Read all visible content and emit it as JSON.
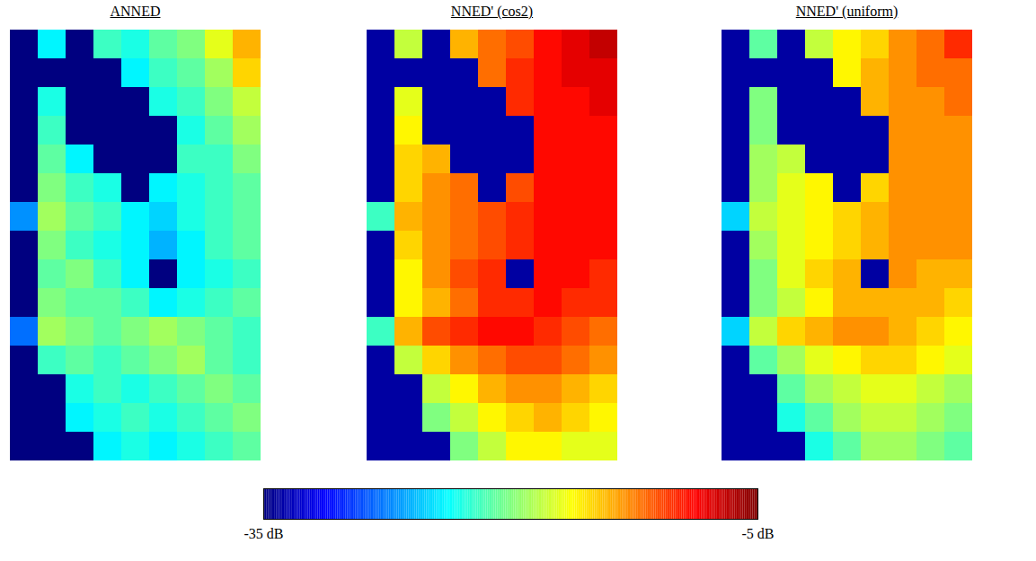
{
  "chart_data": {
    "type": "heatmap",
    "color": "jet",
    "tick_labels": false,
    "panels": [
      {
        "title": "ANNED",
        "cells": [
          [
            -35,
            -24,
            -35,
            -22,
            -23,
            -21,
            -20,
            -17,
            -14
          ],
          [
            -35,
            -35,
            -35,
            -35,
            -24,
            -22,
            -21,
            -19,
            -15
          ],
          [
            -35,
            -23,
            -35,
            -35,
            -35,
            -23,
            -22,
            -20,
            -18
          ],
          [
            -35,
            -22,
            -35,
            -35,
            -35,
            -35,
            -23,
            -21,
            -19
          ],
          [
            -35,
            -21,
            -24,
            -35,
            -35,
            -35,
            -22,
            -22,
            -20
          ],
          [
            -35,
            -20,
            -22,
            -23,
            -35,
            -24,
            -23,
            -22,
            -21
          ],
          [
            -27,
            -19,
            -21,
            -22,
            -24,
            -25,
            -23,
            -22,
            -21
          ],
          [
            -35,
            -20,
            -22,
            -23,
            -24,
            -26,
            -24,
            -22,
            -21
          ],
          [
            -35,
            -21,
            -20,
            -22,
            -24,
            -35,
            -24,
            -23,
            -22
          ],
          [
            -35,
            -20,
            -21,
            -21,
            -22,
            -24,
            -23,
            -22,
            -21
          ],
          [
            -28,
            -19,
            -20,
            -21,
            -20,
            -19,
            -20,
            -21,
            -22
          ],
          [
            -35,
            -22,
            -21,
            -22,
            -21,
            -20,
            -19,
            -21,
            -22
          ],
          [
            -35,
            -35,
            -23,
            -22,
            -23,
            -22,
            -21,
            -20,
            -21
          ],
          [
            -35,
            -35,
            -24,
            -23,
            -22,
            -23,
            -22,
            -21,
            -20
          ],
          [
            -35,
            -35,
            -35,
            -24,
            -23,
            -24,
            -23,
            -22,
            -21
          ]
        ]
      },
      {
        "title": "NNED' (cos2)",
        "cells": [
          [
            -34,
            -18,
            -34,
            -14,
            -12,
            -11,
            -9,
            -8,
            -7
          ],
          [
            -34,
            -34,
            -34,
            -34,
            -12,
            -10,
            -9,
            -8,
            -8
          ],
          [
            -34,
            -17,
            -34,
            -34,
            -34,
            -10,
            -9,
            -9,
            -8
          ],
          [
            -34,
            -16,
            -34,
            -34,
            -34,
            -34,
            -9,
            -9,
            -9
          ],
          [
            -34,
            -15,
            -14,
            -34,
            -34,
            -34,
            -9,
            -9,
            -9
          ],
          [
            -34,
            -15,
            -13,
            -12,
            -34,
            -11,
            -9,
            -9,
            -9
          ],
          [
            -22,
            -14,
            -13,
            -12,
            -11,
            -10,
            -9,
            -9,
            -9
          ],
          [
            -34,
            -15,
            -13,
            -12,
            -11,
            -10,
            -9,
            -9,
            -9
          ],
          [
            -34,
            -16,
            -13,
            -11,
            -10,
            -34,
            -9,
            -9,
            -10
          ],
          [
            -34,
            -16,
            -14,
            -12,
            -10,
            -10,
            -9,
            -10,
            -10
          ],
          [
            -22,
            -14,
            -11,
            -10,
            -9,
            -9,
            -10,
            -11,
            -12
          ],
          [
            -34,
            -18,
            -15,
            -13,
            -12,
            -11,
            -11,
            -12,
            -13
          ],
          [
            -34,
            -34,
            -18,
            -16,
            -14,
            -13,
            -13,
            -14,
            -15
          ],
          [
            -34,
            -34,
            -20,
            -18,
            -16,
            -15,
            -14,
            -15,
            -16
          ],
          [
            -34,
            -34,
            -34,
            -20,
            -18,
            -16,
            -16,
            -17,
            -17
          ]
        ]
      },
      {
        "title": "NNED' (uniform)",
        "cells": [
          [
            -34,
            -21,
            -34,
            -18,
            -16,
            -15,
            -13,
            -12,
            -10
          ],
          [
            -34,
            -34,
            -34,
            -34,
            -16,
            -14,
            -13,
            -12,
            -12
          ],
          [
            -34,
            -20,
            -34,
            -34,
            -34,
            -14,
            -13,
            -13,
            -12
          ],
          [
            -34,
            -20,
            -34,
            -34,
            -34,
            -34,
            -13,
            -13,
            -13
          ],
          [
            -34,
            -19,
            -18,
            -34,
            -34,
            -34,
            -13,
            -13,
            -13
          ],
          [
            -34,
            -19,
            -17,
            -16,
            -34,
            -15,
            -13,
            -13,
            -13
          ],
          [
            -25,
            -18,
            -17,
            -16,
            -15,
            -14,
            -13,
            -13,
            -13
          ],
          [
            -34,
            -19,
            -17,
            -16,
            -15,
            -14,
            -13,
            -13,
            -13
          ],
          [
            -34,
            -20,
            -17,
            -15,
            -14,
            -34,
            -13,
            -14,
            -14
          ],
          [
            -34,
            -20,
            -18,
            -16,
            -14,
            -14,
            -14,
            -14,
            -15
          ],
          [
            -25,
            -18,
            -15,
            -14,
            -13,
            -13,
            -14,
            -15,
            -16
          ],
          [
            -34,
            -21,
            -19,
            -17,
            -16,
            -15,
            -15,
            -16,
            -17
          ],
          [
            -34,
            -34,
            -21,
            -19,
            -18,
            -17,
            -17,
            -18,
            -19
          ],
          [
            -34,
            -34,
            -23,
            -21,
            -19,
            -18,
            -18,
            -19,
            -20
          ],
          [
            -34,
            -34,
            -34,
            -23,
            -21,
            -19,
            -19,
            -20,
            -21
          ]
        ]
      }
    ],
    "colorbar": {
      "range": [
        -35,
        -5
      ],
      "ticks": [
        {
          "value": -35,
          "label": "-35 dB"
        },
        {
          "value": -5,
          "label": "-5 dB"
        }
      ]
    }
  }
}
